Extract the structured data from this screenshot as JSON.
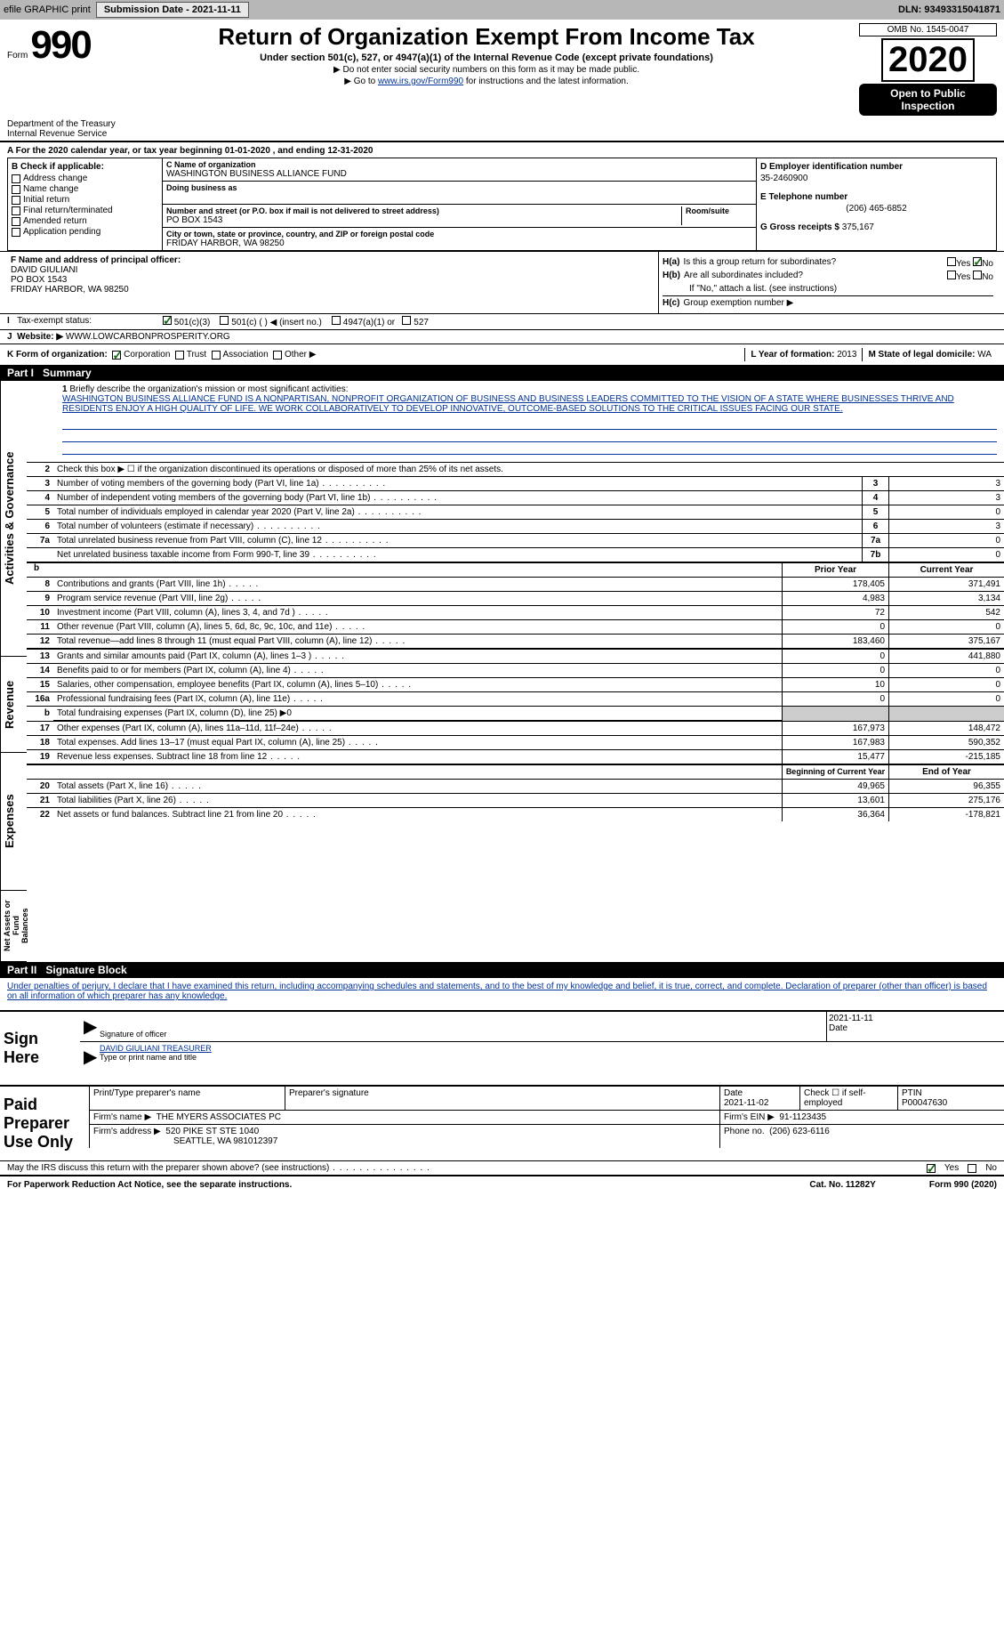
{
  "meta": {
    "efile": "efile GRAPHIC print",
    "submission_label": "Submission Date - 2021-11-11",
    "dln": "DLN: 93493315041871"
  },
  "header": {
    "form_prefix": "Form",
    "form_number": "990",
    "title": "Return of Organization Exempt From Income Tax",
    "subtitle": "Under section 501(c), 527, or 4947(a)(1) of the Internal Revenue Code (except private foundations)",
    "line1": "▶ Do not enter social security numbers on this form as it may be made public.",
    "line2_pre": "▶ Go to ",
    "line2_link": "www.irs.gov/Form990",
    "line2_post": " for instructions and the latest information.",
    "omb": "OMB No. 1545-0047",
    "year": "2020",
    "open1": "Open to Public",
    "open2": "Inspection",
    "dept1": "Department of the Treasury",
    "dept2": "Internal Revenue Service"
  },
  "period": "A For the 2020 calendar year, or tax year beginning 01-01-2020   , and ending 12-31-2020",
  "box_b": {
    "header": "B Check if applicable:",
    "items": [
      "Address change",
      "Name change",
      "Initial return",
      "Final return/terminated",
      "Amended return",
      "Application pending"
    ]
  },
  "box_c": {
    "name_lbl": "C Name of organization",
    "name": "WASHINGTON BUSINESS ALLIANCE FUND",
    "dba_lbl": "Doing business as",
    "addr_lbl": "Number and street (or P.O. box if mail is not delivered to street address)",
    "room_lbl": "Room/suite",
    "addr": "PO BOX 1543",
    "city_lbl": "City or town, state or province, country, and ZIP or foreign postal code",
    "city": "FRIDAY HARBOR, WA  98250"
  },
  "box_d": {
    "ein_lbl": "D Employer identification number",
    "ein": "35-2460900",
    "phone_lbl": "E Telephone number",
    "phone": "(206) 465-6852",
    "gross_lbl": "G Gross receipts $",
    "gross": "375,167"
  },
  "box_f": {
    "lbl": "F  Name and address of principal officer:",
    "name": "DAVID GIULIANI",
    "addr1": "PO BOX 1543",
    "addr2": "FRIDAY HARBOR, WA  98250"
  },
  "box_h": {
    "a_lbl": "H(a)",
    "a_text": "Is this a group return for subordinates?",
    "b_lbl": "H(b)",
    "b_text": "Are all subordinates included?",
    "b_note": "If \"No,\" attach a list. (see instructions)",
    "c_lbl": "H(c)",
    "c_text": "Group exemption number ▶",
    "yes": "Yes",
    "no": "No"
  },
  "row_i": {
    "lbl": "Tax-exempt status:",
    "opts": [
      "501(c)(3)",
      "501(c) (  ) ◀ (insert no.)",
      "4947(a)(1) or",
      "527"
    ]
  },
  "row_j": {
    "lbl": "J",
    "text": "Website: ▶",
    "val": "WWW.LOWCARBONPROSPERITY.ORG"
  },
  "row_k": {
    "lbl": "K Form of organization:",
    "opts": [
      "Corporation",
      "Trust",
      "Association",
      "Other ▶"
    ]
  },
  "row_l": {
    "lbl": "L Year of formation:",
    "val": "2013"
  },
  "row_m": {
    "lbl": "M State of legal domicile:",
    "val": "WA"
  },
  "part1": {
    "num": "Part I",
    "title": "Summary"
  },
  "mission": {
    "num": "1",
    "lbl": "Briefly describe the organization's mission or most significant activities:",
    "text": "WASHINGTON BUSINESS ALLIANCE FUND IS A NONPARTISAN, NONPROFIT ORGANIZATION OF BUSINESS AND BUSINESS LEADERS COMMITTED TO THE VISION OF A STATE WHERE BUSINESSES THRIVE AND RESIDENTS ENJOY A HIGH QUALITY OF LIFE. WE WORK COLLABORATIVELY TO DEVELOP INNOVATIVE, OUTCOME-BASED SOLUTIONS TO THE CRITICAL ISSUES FACING OUR STATE."
  },
  "gov_rows": [
    {
      "n": "2",
      "t": "Check this box ▶ ☐ if the organization discontinued its operations or disposed of more than 25% of its net assets.",
      "nc": "",
      "v": ""
    },
    {
      "n": "3",
      "t": "Number of voting members of the governing body (Part VI, line 1a)",
      "nc": "3",
      "v": "3"
    },
    {
      "n": "4",
      "t": "Number of independent voting members of the governing body (Part VI, line 1b)",
      "nc": "4",
      "v": "3"
    },
    {
      "n": "5",
      "t": "Total number of individuals employed in calendar year 2020 (Part V, line 2a)",
      "nc": "5",
      "v": "0"
    },
    {
      "n": "6",
      "t": "Total number of volunteers (estimate if necessary)",
      "nc": "6",
      "v": "3"
    },
    {
      "n": "7a",
      "t": "Total unrelated business revenue from Part VIII, column (C), line 12",
      "nc": "7a",
      "v": "0"
    },
    {
      "n": "",
      "t": "Net unrelated business taxable income from Form 990-T, line 39",
      "nc": "7b",
      "v": "0"
    }
  ],
  "col_hdrs": {
    "prior": "Prior Year",
    "current": "Current Year"
  },
  "rev_rows": [
    {
      "n": "8",
      "t": "Contributions and grants (Part VIII, line 1h)",
      "p": "178,405",
      "c": "371,491"
    },
    {
      "n": "9",
      "t": "Program service revenue (Part VIII, line 2g)",
      "p": "4,983",
      "c": "3,134"
    },
    {
      "n": "10",
      "t": "Investment income (Part VIII, column (A), lines 3, 4, and 7d )",
      "p": "72",
      "c": "542"
    },
    {
      "n": "11",
      "t": "Other revenue (Part VIII, column (A), lines 5, 6d, 8c, 9c, 10c, and 11e)",
      "p": "0",
      "c": "0"
    },
    {
      "n": "12",
      "t": "Total revenue—add lines 8 through 11 (must equal Part VIII, column (A), line 12)",
      "p": "183,460",
      "c": "375,167"
    }
  ],
  "exp_rows": [
    {
      "n": "13",
      "t": "Grants and similar amounts paid (Part IX, column (A), lines 1–3 )",
      "p": "0",
      "c": "441,880"
    },
    {
      "n": "14",
      "t": "Benefits paid to or for members (Part IX, column (A), line 4)",
      "p": "0",
      "c": "0"
    },
    {
      "n": "15",
      "t": "Salaries, other compensation, employee benefits (Part IX, column (A), lines 5–10)",
      "p": "10",
      "c": "0"
    },
    {
      "n": "16a",
      "t": "Professional fundraising fees (Part IX, column (A), line 11e)",
      "p": "0",
      "c": "0"
    },
    {
      "n": "b",
      "t": "Total fundraising expenses (Part IX, column (D), line 25) ▶0",
      "p": "",
      "c": ""
    },
    {
      "n": "17",
      "t": "Other expenses (Part IX, column (A), lines 11a–11d, 11f–24e)",
      "p": "167,973",
      "c": "148,472"
    },
    {
      "n": "18",
      "t": "Total expenses. Add lines 13–17 (must equal Part IX, column (A), line 25)",
      "p": "167,983",
      "c": "590,352"
    },
    {
      "n": "19",
      "t": "Revenue less expenses. Subtract line 18 from line 12",
      "p": "15,477",
      "c": "-215,185"
    }
  ],
  "net_hdrs": {
    "begin": "Beginning of Current Year",
    "end": "End of Year"
  },
  "net_rows": [
    {
      "n": "20",
      "t": "Total assets (Part X, line 16)",
      "p": "49,965",
      "c": "96,355"
    },
    {
      "n": "21",
      "t": "Total liabilities (Part X, line 26)",
      "p": "13,601",
      "c": "275,176"
    },
    {
      "n": "22",
      "t": "Net assets or fund balances. Subtract line 21 from line 20",
      "p": "36,364",
      "c": "-178,821"
    }
  ],
  "vtabs": {
    "gov": "Activities & Governance",
    "rev": "Revenue",
    "exp": "Expenses",
    "net": "Net Assets or Fund Balances"
  },
  "part2": {
    "num": "Part II",
    "title": "Signature Block"
  },
  "sig": {
    "declaration": "Under penalties of perjury, I declare that I have examined this return, including accompanying schedules and statements, and to the best of my knowledge and belief, it is true, correct, and complete. Declaration of preparer (other than officer) is based on all information of which preparer has any knowledge.",
    "sign_here": "Sign Here",
    "sig_officer": "Signature of officer",
    "date": "Date",
    "date_val": "2021-11-11",
    "printed": "DAVID GIULIANI  TREASURER",
    "printed_lbl": "Type or print name and title"
  },
  "paid": {
    "hdr": "Paid Preparer Use Only",
    "print_lbl": "Print/Type preparer's name",
    "sig_lbl": "Preparer's signature",
    "date_lbl": "Date",
    "date_val": "2021-11-02",
    "check_lbl": "Check ☐ if self-employed",
    "ptin_lbl": "PTIN",
    "ptin": "P00047630",
    "firm_name_lbl": "Firm's name    ▶",
    "firm_name": "THE MYERS ASSOCIATES PC",
    "firm_ein_lbl": "Firm's EIN ▶",
    "firm_ein": "91-1123435",
    "firm_addr_lbl": "Firm's address ▶",
    "firm_addr1": "520 PIKE ST STE 1040",
    "firm_addr2": "SEATTLE, WA  981012397",
    "phone_lbl": "Phone no.",
    "phone": "(206) 623-6116"
  },
  "discuss": {
    "text": "May the IRS discuss this return with the preparer shown above? (see instructions)",
    "yes": "Yes",
    "no": "No"
  },
  "footer": {
    "left": "For Paperwork Reduction Act Notice, see the separate instructions.",
    "mid": "Cat. No. 11282Y",
    "right": "Form 990 (2020)"
  }
}
